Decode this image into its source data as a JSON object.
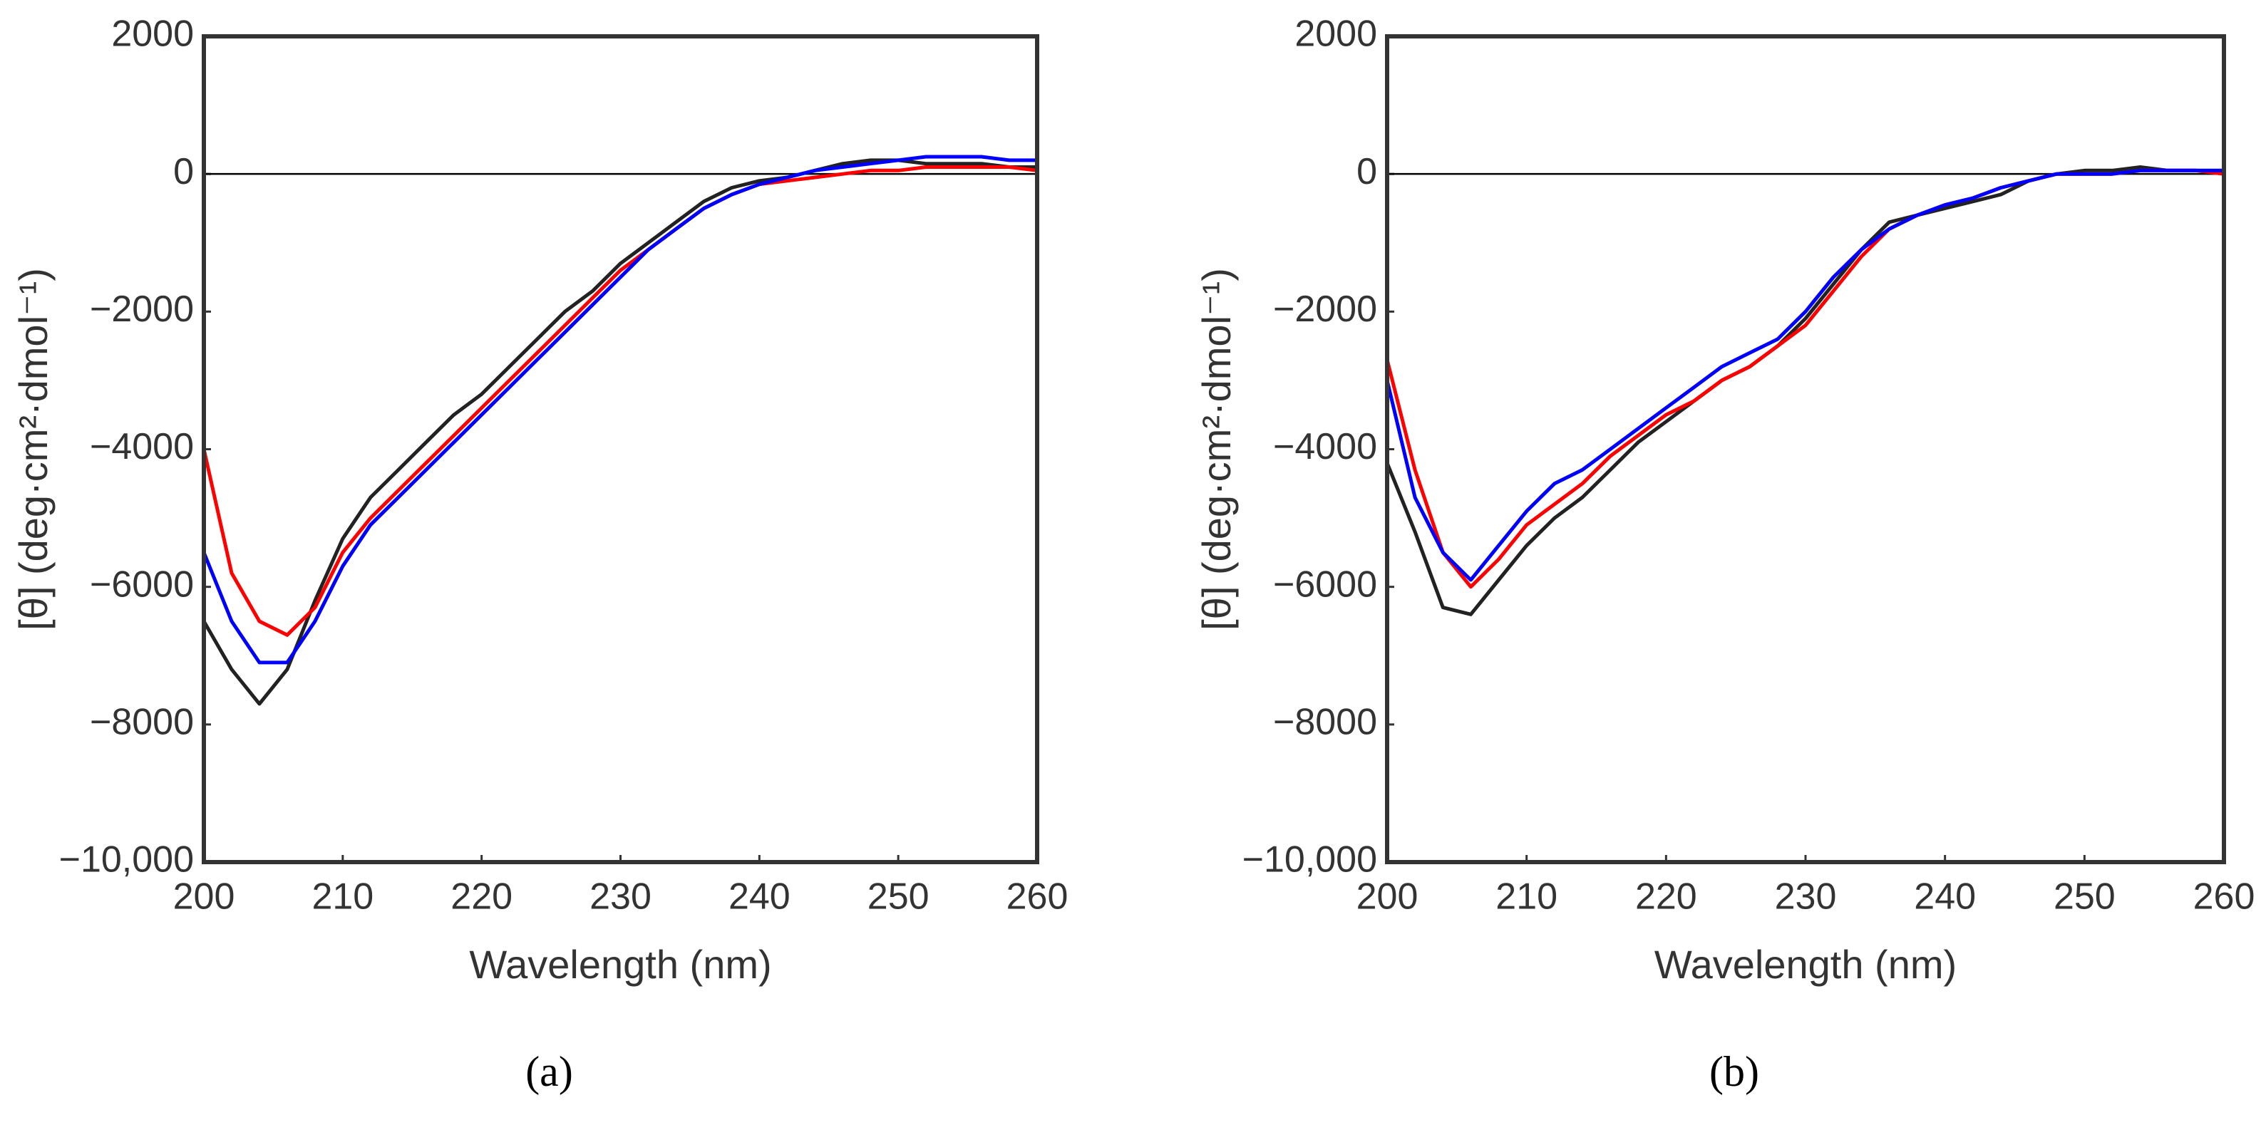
{
  "chart_data": [
    {
      "type": "line",
      "caption": "(a)",
      "x_label": "Wavelength (nm)",
      "y_label": "[θ] (deg·cm²·dmol⁻¹)",
      "xlim": [
        200,
        260
      ],
      "xticks": [
        200,
        210,
        220,
        230,
        240,
        250,
        260
      ],
      "ylim": [
        -10000,
        2000
      ],
      "yticks": [
        {
          "value": -10000,
          "label": "−10,000"
        },
        {
          "value": -8000,
          "label": "−8000"
        },
        {
          "value": -6000,
          "label": "−6000"
        },
        {
          "value": -4000,
          "label": "−4000"
        },
        {
          "value": -2000,
          "label": "−2000"
        },
        0,
        2000
      ],
      "zero_line": true,
      "x": [
        200,
        202,
        204,
        206,
        208,
        210,
        212,
        214,
        216,
        218,
        220,
        222,
        224,
        226,
        228,
        230,
        232,
        234,
        236,
        238,
        240,
        242,
        244,
        246,
        248,
        250,
        252,
        254,
        256,
        258,
        260
      ],
      "series": [
        {
          "color": "#222222",
          "values": [
            -6500,
            -7200,
            -7700,
            -7200,
            -6200,
            -5300,
            -4700,
            -4300,
            -3900,
            -3500,
            -3200,
            -2800,
            -2400,
            -2000,
            -1700,
            -1300,
            -1000,
            -700,
            -400,
            -200,
            -100,
            -50,
            50,
            150,
            200,
            200,
            150,
            150,
            150,
            100,
            100
          ]
        },
        {
          "color": "#ff0000",
          "values": [
            -4000,
            -5800,
            -6500,
            -6700,
            -6300,
            -5500,
            -5000,
            -4600,
            -4200,
            -3800,
            -3400,
            -3000,
            -2600,
            -2200,
            -1800,
            -1400,
            -1100,
            -800,
            -500,
            -300,
            -150,
            -100,
            -50,
            0,
            50,
            50,
            100,
            100,
            100,
            100,
            50
          ]
        },
        {
          "color": "#0000ff",
          "values": [
            -5500,
            -6500,
            -7100,
            -7100,
            -6500,
            -5700,
            -5100,
            -4700,
            -4300,
            -3900,
            -3500,
            -3100,
            -2700,
            -2300,
            -1900,
            -1500,
            -1100,
            -800,
            -500,
            -300,
            -150,
            -50,
            50,
            100,
            150,
            200,
            250,
            250,
            250,
            200,
            200
          ]
        }
      ]
    },
    {
      "type": "line",
      "caption": "(b)",
      "x_label": "Wavelength (nm)",
      "y_label": "[θ] (deg·cm²·dmol⁻¹)",
      "xlim": [
        200,
        260
      ],
      "xticks": [
        200,
        210,
        220,
        230,
        240,
        250,
        260
      ],
      "ylim": [
        -10000,
        2000
      ],
      "yticks": [
        {
          "value": -10000,
          "label": "−10,000"
        },
        {
          "value": -8000,
          "label": "−8000"
        },
        {
          "value": -6000,
          "label": "−6000"
        },
        {
          "value": -4000,
          "label": "−4000"
        },
        {
          "value": -2000,
          "label": "−2000"
        },
        0,
        2000
      ],
      "zero_line": true,
      "x": [
        200,
        202,
        204,
        206,
        208,
        210,
        212,
        214,
        216,
        218,
        220,
        222,
        224,
        226,
        228,
        230,
        232,
        234,
        236,
        238,
        240,
        242,
        244,
        246,
        248,
        250,
        252,
        254,
        256,
        258,
        260
      ],
      "series": [
        {
          "color": "#222222",
          "values": [
            -4200,
            -5200,
            -6300,
            -6400,
            -5900,
            -5400,
            -5000,
            -4700,
            -4300,
            -3900,
            -3600,
            -3300,
            -3000,
            -2800,
            -2500,
            -2100,
            -1600,
            -1100,
            -700,
            -600,
            -500,
            -400,
            -300,
            -100,
            0,
            50,
            50,
            100,
            50,
            50,
            0
          ]
        },
        {
          "color": "#ff0000",
          "values": [
            -2700,
            -4300,
            -5500,
            -6000,
            -5600,
            -5100,
            -4800,
            -4500,
            -4100,
            -3800,
            -3500,
            -3300,
            -3000,
            -2800,
            -2500,
            -2200,
            -1700,
            -1200,
            -800,
            -600,
            -450,
            -350,
            -200,
            -100,
            0,
            0,
            0,
            50,
            50,
            50,
            0
          ]
        },
        {
          "color": "#0000ff",
          "values": [
            -3000,
            -4700,
            -5500,
            -5900,
            -5400,
            -4900,
            -4500,
            -4300,
            -4000,
            -3700,
            -3400,
            -3100,
            -2800,
            -2600,
            -2400,
            -2000,
            -1500,
            -1100,
            -800,
            -600,
            -450,
            -350,
            -200,
            -100,
            0,
            0,
            0,
            50,
            50,
            50,
            50
          ]
        }
      ]
    }
  ]
}
